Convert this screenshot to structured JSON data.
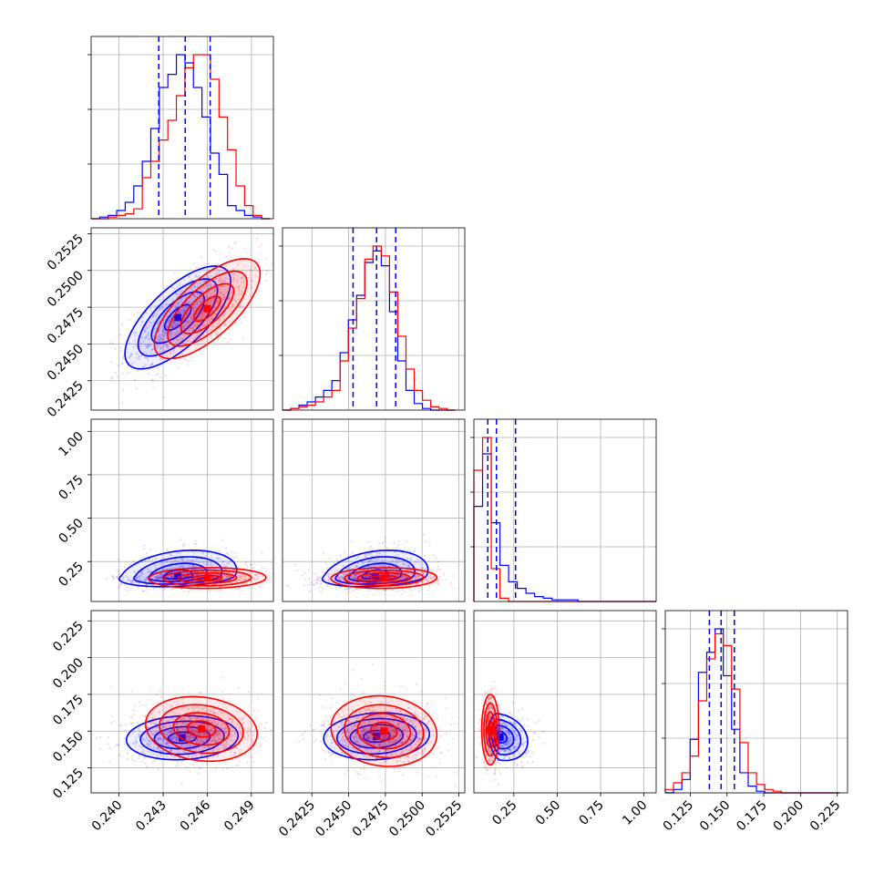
{
  "chart_data": {
    "type": "corner",
    "series": [
      {
        "name": "",
        "color": "#0000ff"
      },
      {
        "name": "",
        "color": "#ff0000"
      }
    ],
    "quantile_line_color": "#0000ff",
    "grid": true,
    "x_tick_labels": [
      [
        "0.240",
        "0.243",
        "0.246",
        "0.249"
      ],
      [
        "0.2425",
        "0.2450",
        "0.2475",
        "0.2500",
        "0.2525"
      ],
      [
        "0.25",
        "0.50",
        "0.75",
        "1.00"
      ],
      [
        "0.125",
        "0.150",
        "0.175",
        "0.200",
        "0.225"
      ]
    ],
    "y_tick_labels": [
      [
        "0.2425",
        "0.2450",
        "0.2475",
        "0.2500",
        "0.2525"
      ],
      [
        "0.25",
        "0.50",
        "0.75",
        "1.00"
      ],
      [
        "0.125",
        "0.150",
        "0.175",
        "0.200",
        "0.225"
      ]
    ],
    "parameters": [
      {
        "ticks": [
          0.24,
          0.243,
          0.246,
          0.249
        ],
        "range": [
          0.2381,
          0.2505
        ],
        "quantiles": [
          0.2427,
          0.2445,
          0.2462
        ],
        "hist": {
          "bins": [
            0.2381,
            0.23868,
            0.23926,
            0.23984,
            0.24042,
            0.241,
            0.24158,
            0.24216,
            0.24274,
            0.24332,
            0.2439,
            0.24448,
            0.24506,
            0.24564,
            0.24622,
            0.2468,
            0.24738,
            0.24796,
            0.24854,
            0.24912,
            0.2497,
            0.25028
          ],
          "blue": [
            0.0,
            0.01,
            0.02,
            0.05,
            0.1,
            0.2,
            0.35,
            0.55,
            0.8,
            0.88,
            1.0,
            0.95,
            0.8,
            0.62,
            0.4,
            0.27,
            0.08,
            0.05,
            0.02,
            0.01,
            0.0
          ],
          "red": [
            0.0,
            0.0,
            0.01,
            0.02,
            0.03,
            0.06,
            0.25,
            0.35,
            0.48,
            0.6,
            0.75,
            0.92,
            1.0,
            1.0,
            0.85,
            0.62,
            0.42,
            0.2,
            0.08,
            0.02,
            0.0
          ]
        }
      },
      {
        "ticks": [
          0.2425,
          0.245,
          0.2475,
          0.25,
          0.2525
        ],
        "range": [
          0.2405,
          0.2529
        ],
        "quantiles": [
          0.2453,
          0.2469,
          0.2482
        ],
        "hist": {
          "bins": [
            0.2405,
            0.24106,
            0.24162,
            0.24218,
            0.24274,
            0.2433,
            0.24386,
            0.24442,
            0.24498,
            0.24554,
            0.2461,
            0.24666,
            0.24722,
            0.24778,
            0.24834,
            0.2489,
            0.24946,
            0.25002,
            0.25058,
            0.25114,
            0.2517,
            0.25226
          ],
          "blue": [
            0.0,
            0.01,
            0.03,
            0.05,
            0.08,
            0.12,
            0.18,
            0.35,
            0.55,
            0.7,
            0.9,
            0.97,
            0.88,
            0.6,
            0.3,
            0.12,
            0.04,
            0.01,
            0.0,
            0.0,
            0.0
          ],
          "red": [
            0.0,
            0.01,
            0.02,
            0.03,
            0.05,
            0.08,
            0.12,
            0.3,
            0.5,
            0.68,
            0.92,
            1.0,
            0.94,
            0.72,
            0.45,
            0.25,
            0.12,
            0.06,
            0.02,
            0.01,
            0.0
          ]
        }
      },
      {
        "ticks": [
          0.25,
          0.5,
          0.75,
          1.0
        ],
        "range": [
          0.02,
          1.07
        ],
        "quantiles": [
          0.1,
          0.15,
          0.26
        ],
        "hist": {
          "bins": [
            0.02,
            0.07,
            0.12,
            0.17,
            0.22,
            0.27,
            0.32,
            0.37,
            0.42,
            0.47,
            0.52,
            0.57,
            0.62,
            0.67,
            0.72,
            0.77,
            0.82,
            0.87,
            0.92,
            0.97,
            1.02,
            1.07
          ],
          "blue": [
            0.58,
            0.9,
            0.48,
            0.22,
            0.12,
            0.08,
            0.05,
            0.03,
            0.02,
            0.01,
            0.01,
            0.01,
            0.0,
            0.0,
            0.0,
            0.0,
            0.0,
            0.0,
            0.0,
            0.0,
            0.0
          ],
          "red": [
            0.8,
            1.0,
            0.2,
            0.02,
            0.0,
            0.0,
            0.0,
            0.0,
            0.0,
            0.0,
            0.0,
            0.0,
            0.0,
            0.0,
            0.0,
            0.0,
            0.0,
            0.0,
            0.0,
            0.0,
            0.0
          ]
        }
      },
      {
        "ticks": [
          0.125,
          0.15,
          0.175,
          0.2,
          0.225
        ],
        "range": [
          0.108,
          0.232
        ],
        "quantiles": [
          0.138,
          0.146,
          0.155
        ],
        "hist": {
          "bins": [
            0.108,
            0.11364,
            0.11928,
            0.12492,
            0.13056,
            0.1362,
            0.14184,
            0.14748,
            0.15312,
            0.15876,
            0.1644,
            0.17004,
            0.17568,
            0.18132,
            0.18696,
            0.1926,
            0.19824,
            0.20388,
            0.20952,
            0.21516,
            0.2208,
            0.22644
          ],
          "blue": [
            0.0,
            0.02,
            0.08,
            0.32,
            0.72,
            0.84,
            0.98,
            0.7,
            0.38,
            0.12,
            0.04,
            0.01,
            0.0,
            0.0,
            0.0,
            0.0,
            0.0,
            0.0,
            0.0,
            0.0,
            0.0
          ],
          "red": [
            0.02,
            0.06,
            0.12,
            0.22,
            0.55,
            0.8,
            0.95,
            0.88,
            0.62,
            0.3,
            0.12,
            0.05,
            0.02,
            0.01,
            0.0,
            0.0,
            0.0,
            0.0,
            0.0,
            0.0,
            0.0
          ]
        }
      }
    ],
    "pairs": [
      {
        "row": 1,
        "col": 0,
        "blue": {
          "mean": [
            0.244,
            0.2468
          ],
          "sd": [
            0.0018,
            0.00175
          ],
          "rho": 0.7
        },
        "red": {
          "mean": [
            0.246,
            0.2474
          ],
          "sd": [
            0.0018,
            0.0017
          ],
          "rho": 0.7
        }
      },
      {
        "row": 2,
        "col": 0,
        "blue": {
          "mean": [
            0.244,
            0.165
          ],
          "sd": [
            0.002,
            0.075
          ],
          "rho": 0.25
        },
        "red": {
          "mean": [
            0.246,
            0.155
          ],
          "sd": [
            0.002,
            0.03
          ],
          "rho": 0.05
        }
      },
      {
        "row": 2,
        "col": 1,
        "blue": {
          "mean": [
            0.2468,
            0.165
          ],
          "sd": [
            0.0018,
            0.075
          ],
          "rho": 0.25
        },
        "red": {
          "mean": [
            0.2474,
            0.155
          ],
          "sd": [
            0.0018,
            0.03
          ],
          "rho": 0.05
        }
      },
      {
        "row": 3,
        "col": 0,
        "blue": {
          "mean": [
            0.2443,
            0.1455
          ],
          "sd": [
            0.0019,
            0.0075
          ],
          "rho": 0.1
        },
        "red": {
          "mean": [
            0.2456,
            0.1515
          ],
          "sd": [
            0.0019,
            0.011
          ],
          "rho": -0.15
        }
      },
      {
        "row": 3,
        "col": 1,
        "blue": {
          "mean": [
            0.2469,
            0.1465
          ],
          "sd": [
            0.0018,
            0.008
          ],
          "rho": 0.1
        },
        "red": {
          "mean": [
            0.2474,
            0.15
          ],
          "sd": [
            0.0018,
            0.012
          ],
          "rho": -0.1
        }
      },
      {
        "row": 3,
        "col": 2,
        "blue": {
          "mean": [
            0.17,
            0.146
          ],
          "sd": [
            0.08,
            0.008
          ],
          "rho": -0.2
        },
        "red": {
          "mean": [
            0.115,
            0.151
          ],
          "sd": [
            0.025,
            0.012
          ],
          "rho": 0.0
        }
      }
    ]
  }
}
